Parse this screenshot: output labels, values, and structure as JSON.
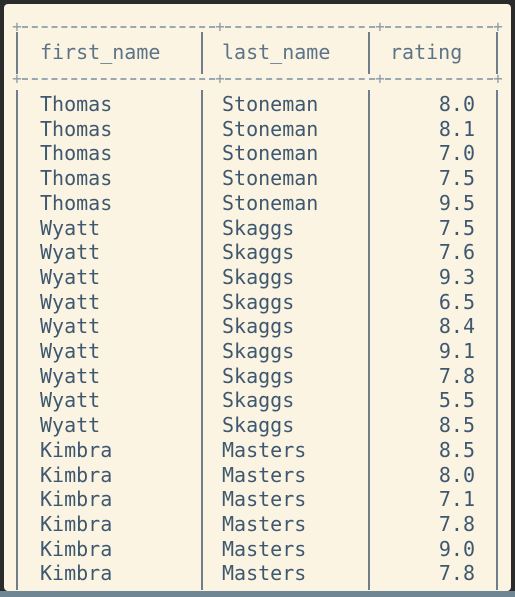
{
  "table": {
    "headers": {
      "first_name": "first_name",
      "last_name": "last_name",
      "rating": "rating"
    },
    "rows": [
      {
        "first_name": "Thomas",
        "last_name": "Stoneman",
        "rating": "8.0"
      },
      {
        "first_name": "Thomas",
        "last_name": "Stoneman",
        "rating": "8.1"
      },
      {
        "first_name": "Thomas",
        "last_name": "Stoneman",
        "rating": "7.0"
      },
      {
        "first_name": "Thomas",
        "last_name": "Stoneman",
        "rating": "7.5"
      },
      {
        "first_name": "Thomas",
        "last_name": "Stoneman",
        "rating": "9.5"
      },
      {
        "first_name": "Wyatt",
        "last_name": "Skaggs",
        "rating": "7.5"
      },
      {
        "first_name": "Wyatt",
        "last_name": "Skaggs",
        "rating": "7.6"
      },
      {
        "first_name": "Wyatt",
        "last_name": "Skaggs",
        "rating": "9.3"
      },
      {
        "first_name": "Wyatt",
        "last_name": "Skaggs",
        "rating": "6.5"
      },
      {
        "first_name": "Wyatt",
        "last_name": "Skaggs",
        "rating": "8.4"
      },
      {
        "first_name": "Wyatt",
        "last_name": "Skaggs",
        "rating": "9.1"
      },
      {
        "first_name": "Wyatt",
        "last_name": "Skaggs",
        "rating": "7.8"
      },
      {
        "first_name": "Wyatt",
        "last_name": "Skaggs",
        "rating": "5.5"
      },
      {
        "first_name": "Wyatt",
        "last_name": "Skaggs",
        "rating": "8.5"
      },
      {
        "first_name": "Kimbra",
        "last_name": "Masters",
        "rating": "8.5"
      },
      {
        "first_name": "Kimbra",
        "last_name": "Masters",
        "rating": "8.0"
      },
      {
        "first_name": "Kimbra",
        "last_name": "Masters",
        "rating": "7.1"
      },
      {
        "first_name": "Kimbra",
        "last_name": "Masters",
        "rating": "7.8"
      },
      {
        "first_name": "Kimbra",
        "last_name": "Masters",
        "rating": "9.0"
      },
      {
        "first_name": "Kimbra",
        "last_name": "Masters",
        "rating": "7.8"
      }
    ]
  },
  "colors": {
    "background": "#fcf4e2",
    "text": "#3e5870",
    "border": "#6f7e8a"
  }
}
